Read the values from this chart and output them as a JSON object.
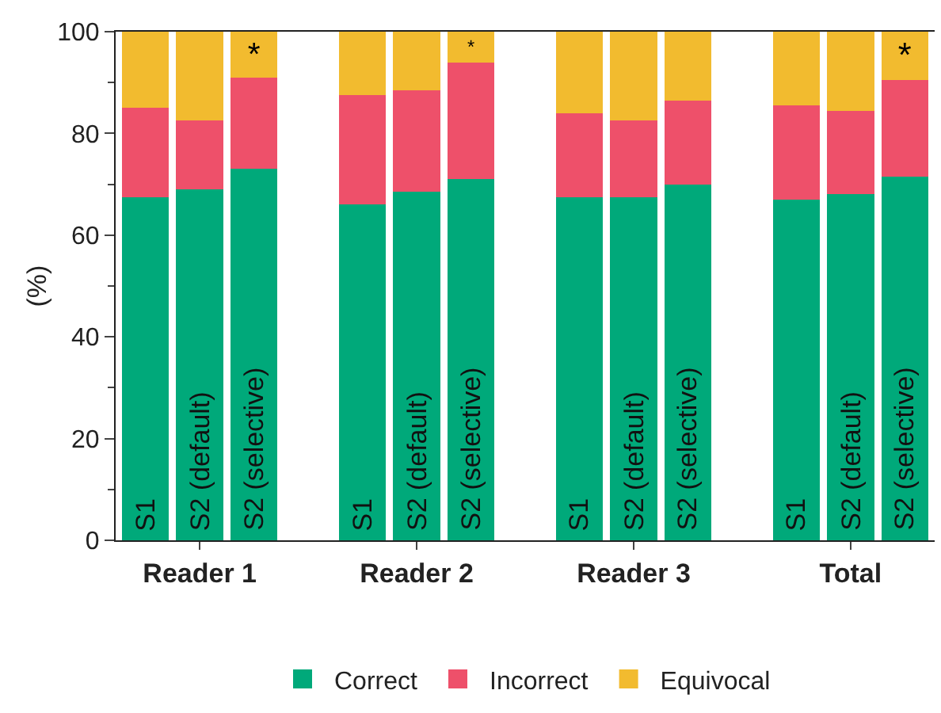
{
  "chart_data": {
    "type": "bar",
    "stacked": true,
    "ylabel": "(%)",
    "categories": [
      "S1",
      "S2 (default)",
      "S2 (selective)",
      null,
      "S1",
      "S2 (default)",
      "S2 (selective)",
      null,
      "S1",
      "S2 (default)",
      "S2 (selective)",
      null,
      "S1",
      "S2 (default)",
      "S2 (selective)"
    ],
    "series": [
      {
        "name": "Correct",
        "color": "#00a97a",
        "values": [
          67.5,
          69,
          73,
          null,
          66,
          68.5,
          71,
          null,
          67.5,
          67.5,
          70,
          null,
          67,
          68,
          71.5
        ]
      },
      {
        "name": "Incorrect",
        "color": "#ee506a",
        "values": [
          17.5,
          13.5,
          18,
          null,
          21.5,
          20,
          23,
          null,
          16.5,
          15,
          16.5,
          null,
          18.5,
          16.5,
          19
        ]
      },
      {
        "name": "Equivocal",
        "color": "#f2bb2f",
        "values": [
          15,
          17.5,
          9,
          null,
          12.5,
          11.5,
          6,
          null,
          16,
          17.5,
          13.5,
          null,
          14.5,
          15.5,
          9.5
        ],
        "value_labels": [
          null,
          null,
          "*",
          null,
          null,
          null,
          "*",
          null,
          null,
          null,
          null,
          null,
          null,
          null,
          "*"
        ]
      }
    ],
    "annotations": [
      "Reader 1",
      "Reader 2",
      "Reader 3",
      "Total"
    ],
    "ylim": [
      0,
      100
    ],
    "yticks": [
      0,
      20,
      40,
      60,
      80,
      100
    ],
    "grid": false,
    "legend": "bottom"
  }
}
